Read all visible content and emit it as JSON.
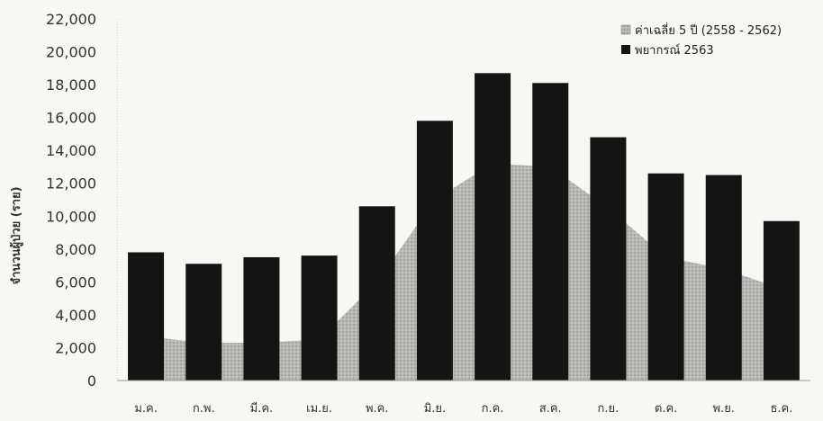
{
  "chart_data": {
    "type": "bar",
    "ylabel": "จำนวนผู้ป่วย (ราย)",
    "ylim": [
      0,
      22000
    ],
    "yticks": [
      "0",
      "2,000",
      "4,000",
      "6,000",
      "8,000",
      "10,000",
      "12,000",
      "14,000",
      "16,000",
      "18,000",
      "20,000",
      "22,000"
    ],
    "categories": [
      "ม.ค.",
      "ก.พ.",
      "มี.ค.",
      "เม.ย.",
      "พ.ค.",
      "มิ.ย.",
      "ก.ค.",
      "ส.ค.",
      "ก.ย.",
      "ต.ค.",
      "พ.ย.",
      "ธ.ค."
    ],
    "series": [
      {
        "name": "ค่าเฉลี่ย 5 ปี (2558 - 2562)",
        "render": "area",
        "color": "#a8a8a8",
        "values": [
          2800,
          2300,
          2300,
          2500,
          6000,
          11000,
          13200,
          13000,
          10500,
          7500,
          6800,
          5800
        ]
      },
      {
        "name": "พยากรณ์ 2563",
        "render": "bar",
        "color": "#141414",
        "values": [
          7800,
          7100,
          7500,
          7600,
          10600,
          15800,
          18700,
          18100,
          14800,
          12600,
          12500,
          9700
        ]
      }
    ],
    "grid": false,
    "legend": "top-right"
  }
}
